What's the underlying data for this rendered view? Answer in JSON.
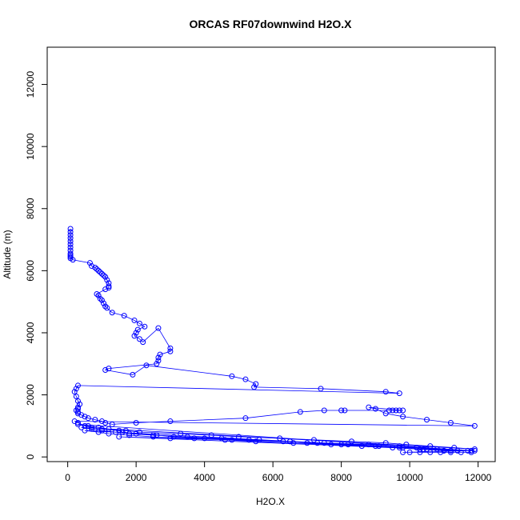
{
  "chart_data": {
    "type": "scatter",
    "title": "ORCAS RF07downwind H2O.X",
    "xlabel": "H2O.X",
    "ylabel": "Altitude (m)",
    "xlim": [
      -600,
      12500
    ],
    "ylim": [
      -150,
      13200
    ],
    "xticks": [
      0,
      2000,
      4000,
      6000,
      8000,
      10000,
      12000
    ],
    "yticks": [
      0,
      2000,
      4000,
      6000,
      8000,
      10000,
      12000
    ],
    "xtick_labels": [
      "0",
      "2000",
      "4000",
      "6000",
      "8000",
      "10000",
      "12000"
    ],
    "ytick_labels": [
      "0",
      "2000",
      "4000",
      "6000",
      "8000",
      "10000",
      "12000"
    ],
    "grid": false,
    "marker": "open-circle",
    "connected": true,
    "color": "#0000ff",
    "series": [
      {
        "x": [
          80,
          80,
          80,
          80,
          80,
          80,
          80,
          80,
          80,
          80,
          80,
          80,
          150,
          650,
          700,
          800,
          850,
          900,
          950,
          1000,
          1050,
          1100,
          1150,
          1200,
          1200,
          1200,
          1100,
          850,
          900,
          950,
          1000,
          1050,
          1100,
          1150,
          1300,
          1650,
          1950,
          2100,
          2250,
          2050,
          2000,
          1950,
          2100,
          2200,
          2650,
          3000,
          3000,
          2700,
          2650,
          2650,
          2600,
          1200,
          1100,
          1900,
          2300,
          4800,
          5200,
          5500,
          5450,
          7400,
          9300,
          9700,
          300,
          250,
          200,
          250,
          300,
          350,
          300,
          300,
          250,
          300,
          300,
          400,
          500,
          600,
          800,
          1000,
          1100,
          1300,
          2000,
          3000,
          5200,
          6800,
          7500,
          8000,
          8100,
          9400,
          9500,
          9600,
          9700,
          9800,
          8800,
          9000,
          9300,
          9800,
          10500,
          11200,
          11900,
          200,
          300,
          500,
          700,
          1000,
          1500,
          1600,
          2000,
          2600,
          3100,
          4000,
          5300,
          6500,
          7000,
          8000,
          9000,
          9700,
          10500,
          11000,
          11800,
          300,
          600,
          900,
          1200,
          1700,
          2100,
          3300,
          4200,
          5000,
          6200,
          7200,
          8300,
          9300,
          9900,
          10600,
          11300,
          11900,
          400,
          700,
          1000,
          1400,
          1800,
          2500,
          3500,
          4500,
          5600,
          6500,
          7300,
          8200,
          9100,
          9800,
          10400,
          11200,
          11800,
          500,
          900,
          1200,
          1800,
          2500,
          3700,
          4600,
          5500,
          6600,
          7700,
          8600,
          9500,
          10300,
          11000,
          11700,
          1500,
          3000,
          4800,
          6300,
          7500,
          8800,
          9700,
          10200,
          10800,
          11400,
          11900,
          9800,
          10000,
          10300,
          10600,
          10900,
          11200,
          11500,
          11800
        ],
        "y": [
          7350,
          7250,
          7150,
          7050,
          6950,
          6850,
          6750,
          6650,
          6550,
          6500,
          6450,
          6400,
          6350,
          6250,
          6150,
          6100,
          6050,
          6000,
          5950,
          5900,
          5850,
          5800,
          5700,
          5600,
          5500,
          5450,
          5400,
          5250,
          5200,
          5100,
          5050,
          4950,
          4850,
          4800,
          4650,
          4550,
          4400,
          4300,
          4200,
          4100,
          4000,
          3900,
          3800,
          3700,
          4150,
          3500,
          3400,
          3300,
          3200,
          3100,
          3000,
          2850,
          2800,
          2650,
          2950,
          2600,
          2500,
          2350,
          2250,
          2200,
          2100,
          2050,
          2300,
          2200,
          2100,
          1950,
          1800,
          1700,
          1600,
          1550,
          1500,
          1450,
          1400,
          1350,
          1300,
          1250,
          1200,
          1150,
          1100,
          1050,
          1100,
          1150,
          1250,
          1450,
          1500,
          1500,
          1500,
          1500,
          1500,
          1500,
          1500,
          1500,
          1600,
          1550,
          1400,
          1300,
          1200,
          1100,
          1000,
          1150,
          1100,
          1000,
          950,
          900,
          850,
          800,
          750,
          700,
          650,
          600,
          550,
          500,
          450,
          400,
          350,
          300,
          250,
          200,
          200,
          1050,
          1000,
          950,
          900,
          850,
          800,
          750,
          700,
          650,
          600,
          550,
          500,
          450,
          400,
          350,
          300,
          250,
          950,
          900,
          850,
          800,
          750,
          700,
          650,
          600,
          550,
          500,
          450,
          400,
          350,
          300,
          250,
          200,
          200,
          850,
          800,
          750,
          700,
          650,
          600,
          550,
          500,
          450,
          400,
          350,
          300,
          250,
          200,
          200,
          650,
          600,
          550,
          500,
          450,
          400,
          350,
          300,
          250,
          200,
          200,
          150,
          150,
          150,
          150,
          150,
          150,
          150,
          150
        ]
      }
    ]
  }
}
